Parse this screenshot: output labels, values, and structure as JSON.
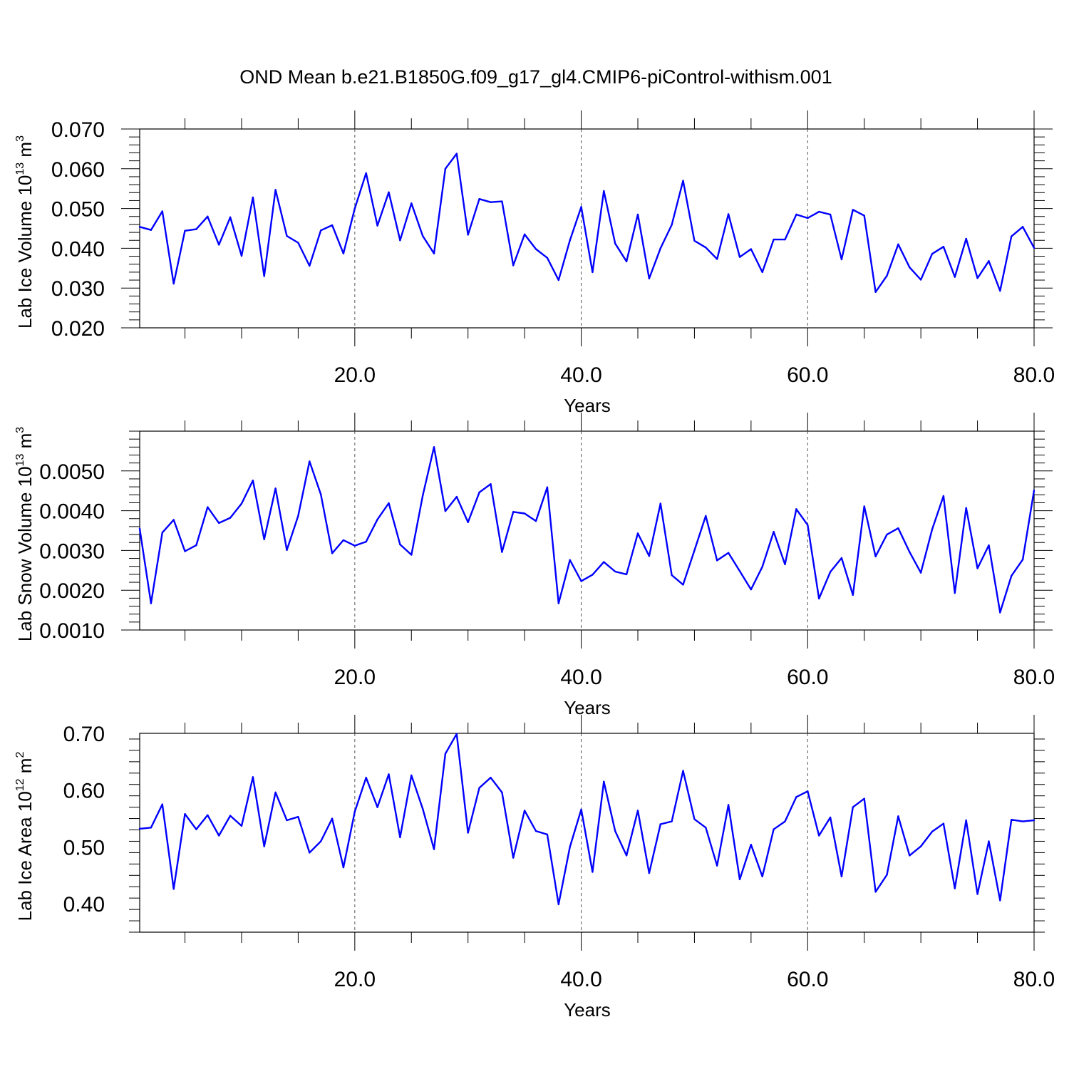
{
  "title": "OND Mean b.e21.B1850G.f09_g17_gl4.CMIP6-piControl-withism.001",
  "line_color": "#0000ff",
  "chart_data": [
    {
      "type": "line",
      "xlabel": "Years",
      "ylabel": "Lab Ice Volume 10",
      "ylabel_exp": "13",
      "ylabel_unit": "m",
      "ylabel_unit_exp": "3",
      "xlim": [
        1,
        80
      ],
      "ylim": [
        0.02,
        0.07
      ],
      "xticks": [
        20,
        40,
        60,
        80
      ],
      "xtick_labels": [
        "20.0",
        "40.0",
        "60.0",
        "80.0"
      ],
      "yticks": [
        0.02,
        0.03,
        0.04,
        0.05,
        0.06,
        0.07
      ],
      "ytick_labels": [
        "0.020",
        "0.030",
        "0.040",
        "0.050",
        "0.060",
        "0.070"
      ],
      "x_gridlines": [
        20,
        40,
        60
      ],
      "x": [
        1,
        2,
        3,
        4,
        5,
        6,
        7,
        8,
        9,
        10,
        11,
        12,
        13,
        14,
        15,
        16,
        17,
        18,
        19,
        20,
        21,
        22,
        23,
        24,
        25,
        26,
        27,
        28,
        29,
        30,
        31,
        32,
        33,
        34,
        35,
        36,
        37,
        38,
        39,
        40,
        41,
        42,
        43,
        44,
        45,
        46,
        47,
        48,
        49,
        50,
        51,
        52,
        53,
        54,
        55,
        56,
        57,
        58,
        59,
        60,
        61,
        62,
        63,
        64,
        65,
        66,
        67,
        68,
        69,
        70,
        71,
        72,
        73,
        74,
        75,
        76,
        77,
        78,
        79,
        80
      ],
      "values": [
        0.0454,
        0.0446,
        0.0493,
        0.0311,
        0.0444,
        0.0448,
        0.048,
        0.0409,
        0.0478,
        0.0381,
        0.0528,
        0.033,
        0.0547,
        0.0431,
        0.0414,
        0.0356,
        0.0445,
        0.0458,
        0.0387,
        0.05,
        0.0589,
        0.0457,
        0.0541,
        0.042,
        0.0513,
        0.0431,
        0.0387,
        0.06,
        0.0638,
        0.0434,
        0.0524,
        0.0516,
        0.0518,
        0.0357,
        0.0435,
        0.0398,
        0.0376,
        0.032,
        0.042,
        0.0504,
        0.034,
        0.0544,
        0.0412,
        0.0367,
        0.0485,
        0.0324,
        0.04,
        0.0459,
        0.057,
        0.0419,
        0.0402,
        0.0373,
        0.0486,
        0.0378,
        0.0398,
        0.034,
        0.0422,
        0.0422,
        0.0485,
        0.0476,
        0.0492,
        0.0485,
        0.0372,
        0.0497,
        0.0482,
        0.029,
        0.0331,
        0.041,
        0.0352,
        0.0321,
        0.0386,
        0.0404,
        0.0328,
        0.0424,
        0.0325,
        0.0368,
        0.0293,
        0.043,
        0.0454,
        0.0401
      ]
    },
    {
      "type": "line",
      "xlabel": "Years",
      "ylabel": "Lab Snow Volume 10",
      "ylabel_exp": "13",
      "ylabel_unit": "m",
      "ylabel_unit_exp": "3",
      "xlim": [
        1,
        80
      ],
      "ylim": [
        0.001,
        0.006
      ],
      "xticks": [
        20,
        40,
        60,
        80
      ],
      "xtick_labels": [
        "20.0",
        "40.0",
        "60.0",
        "80.0"
      ],
      "yticks": [
        0.001,
        0.002,
        0.003,
        0.004,
        0.005
      ],
      "ytick_labels": [
        "0.0010",
        "0.0020",
        "0.0030",
        "0.0040",
        "0.0050"
      ],
      "x_gridlines": [
        20,
        40,
        60
      ],
      "x": [
        1,
        2,
        3,
        4,
        5,
        6,
        7,
        8,
        9,
        10,
        11,
        12,
        13,
        14,
        15,
        16,
        17,
        18,
        19,
        20,
        21,
        22,
        23,
        24,
        25,
        26,
        27,
        28,
        29,
        30,
        31,
        32,
        33,
        34,
        35,
        36,
        37,
        38,
        39,
        40,
        41,
        42,
        43,
        44,
        45,
        46,
        47,
        48,
        49,
        50,
        51,
        52,
        53,
        54,
        55,
        56,
        57,
        58,
        59,
        60,
        61,
        62,
        63,
        64,
        65,
        66,
        67,
        68,
        69,
        70,
        71,
        72,
        73,
        74,
        75,
        76,
        77,
        78,
        79,
        80
      ],
      "values": [
        0.00355,
        0.00167,
        0.00345,
        0.00377,
        0.00298,
        0.00313,
        0.00409,
        0.00369,
        0.00382,
        0.00418,
        0.00476,
        0.00328,
        0.00456,
        0.00301,
        0.00387,
        0.00524,
        0.00441,
        0.00293,
        0.00326,
        0.00312,
        0.00322,
        0.00378,
        0.00419,
        0.00315,
        0.00289,
        0.00438,
        0.0056,
        0.00399,
        0.00435,
        0.00371,
        0.00446,
        0.00467,
        0.00296,
        0.00397,
        0.00393,
        0.00374,
        0.00459,
        0.00167,
        0.00276,
        0.00223,
        0.00239,
        0.00271,
        0.00247,
        0.0024,
        0.00343,
        0.00286,
        0.00418,
        0.00238,
        0.00214,
        0.003,
        0.00387,
        0.00275,
        0.00294,
        0.00248,
        0.00202,
        0.00259,
        0.00347,
        0.00265,
        0.00404,
        0.00364,
        0.00179,
        0.00246,
        0.00281,
        0.00188,
        0.00411,
        0.00285,
        0.0034,
        0.00356,
        0.00296,
        0.00244,
        0.00353,
        0.00437,
        0.00193,
        0.00407,
        0.00255,
        0.00313,
        0.00144,
        0.00236,
        0.00277,
        0.00451
      ]
    },
    {
      "type": "line",
      "xlabel": "Years",
      "ylabel": "Lab Ice Area 10",
      "ylabel_exp": "12",
      "ylabel_unit": "m",
      "ylabel_unit_exp": "2",
      "xlim": [
        1,
        80
      ],
      "ylim": [
        0.35,
        0.7
      ],
      "xticks": [
        20,
        40,
        60,
        80
      ],
      "xtick_labels": [
        "20.0",
        "40.0",
        "60.0",
        "80.0"
      ],
      "yticks": [
        0.4,
        0.5,
        0.6,
        0.7
      ],
      "ytick_labels": [
        "0.40",
        "0.50",
        "0.60",
        "0.70"
      ],
      "x_gridlines": [
        20,
        40,
        60
      ],
      "x": [
        1,
        2,
        3,
        4,
        5,
        6,
        7,
        8,
        9,
        10,
        11,
        12,
        13,
        14,
        15,
        16,
        17,
        18,
        19,
        20,
        21,
        22,
        23,
        24,
        25,
        26,
        27,
        28,
        29,
        30,
        31,
        32,
        33,
        34,
        35,
        36,
        37,
        38,
        39,
        40,
        41,
        42,
        43,
        44,
        45,
        46,
        47,
        48,
        49,
        50,
        51,
        52,
        53,
        54,
        55,
        56,
        57,
        58,
        59,
        60,
        61,
        62,
        63,
        64,
        65,
        66,
        67,
        68,
        69,
        70,
        71,
        72,
        73,
        74,
        75,
        76,
        77,
        78,
        79,
        80
      ],
      "values": [
        0.532,
        0.534,
        0.575,
        0.426,
        0.558,
        0.531,
        0.556,
        0.52,
        0.555,
        0.537,
        0.623,
        0.501,
        0.596,
        0.547,
        0.553,
        0.49,
        0.51,
        0.55,
        0.464,
        0.562,
        0.622,
        0.57,
        0.628,
        0.517,
        0.626,
        0.567,
        0.496,
        0.664,
        0.699,
        0.525,
        0.604,
        0.622,
        0.596,
        0.481,
        0.564,
        0.528,
        0.522,
        0.399,
        0.5,
        0.566,
        0.456,
        0.615,
        0.528,
        0.485,
        0.564,
        0.454,
        0.54,
        0.545,
        0.634,
        0.549,
        0.534,
        0.467,
        0.574,
        0.443,
        0.504,
        0.448,
        0.531,
        0.545,
        0.588,
        0.598,
        0.52,
        0.552,
        0.448,
        0.57,
        0.585,
        0.421,
        0.451,
        0.554,
        0.485,
        0.501,
        0.527,
        0.541,
        0.427,
        0.547,
        0.417,
        0.51,
        0.406,
        0.548,
        0.545,
        0.547
      ]
    }
  ]
}
